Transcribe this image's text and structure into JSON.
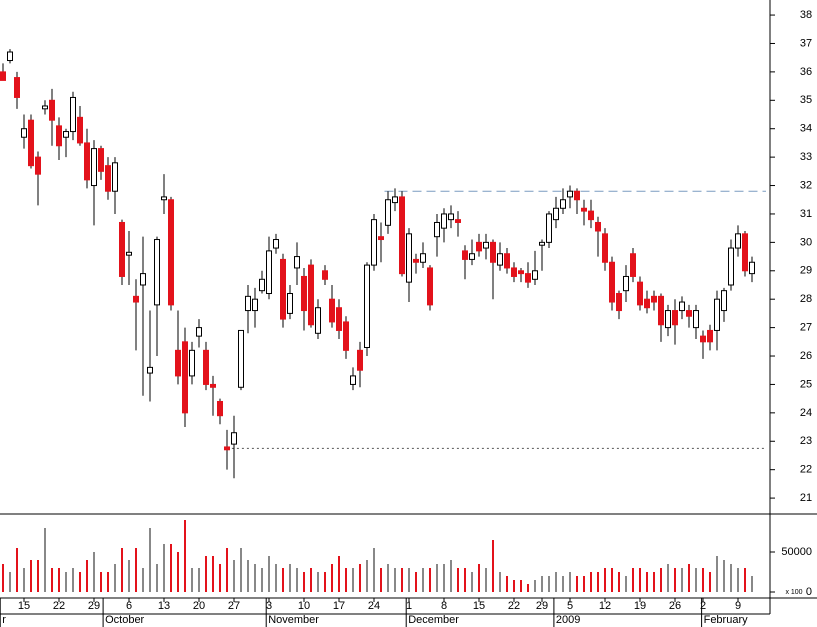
{
  "chart_data": {
    "type": "candlestick",
    "open": [
      36.0,
      36.4,
      35.8,
      33.7,
      34.3,
      33.0,
      34.7,
      35.0,
      34.1,
      33.7,
      33.9,
      34.4,
      33.5,
      32.0,
      33.3,
      32.7,
      31.8,
      30.7,
      29.55,
      28.1,
      28.5,
      25.4,
      27.8,
      31.5,
      31.5,
      26.2,
      26.5,
      25.3,
      26.7,
      26.2,
      25.0,
      24.4,
      22.8,
      22.9,
      24.9,
      27.6,
      27.6,
      28.3,
      28.2,
      29.8,
      29.4,
      27.5,
      29.1,
      28.8,
      29.2,
      26.8,
      29.0,
      28.0,
      27.7,
      27.2,
      25.0,
      26.2,
      26.3,
      29.2,
      30.2,
      30.6,
      31.4,
      31.6,
      28.6,
      29.4,
      29.3,
      29.1,
      30.2,
      30.5,
      30.8,
      30.8,
      29.7,
      29.4,
      30.0,
      29.8,
      30.0,
      29.2,
      29.6,
      29.1,
      29.0,
      28.9,
      28.7,
      29.9,
      30.0,
      30.8,
      31.2,
      31.6,
      31.8,
      31.2,
      31.1,
      30.7,
      30.3,
      29.3,
      28.2,
      28.3,
      29.6,
      28.6,
      28.0,
      28.1,
      28.1,
      27.0,
      27.6,
      27.6,
      27.6,
      27.0,
      26.7,
      26.9,
      26.9,
      27.6,
      28.5,
      29.8,
      30.3,
      28.9
    ],
    "high": [
      36.3,
      36.8,
      36.0,
      34.5,
      34.5,
      33.2,
      35.0,
      35.4,
      34.4,
      34.0,
      35.3,
      34.8,
      34.0,
      33.6,
      33.4,
      33.0,
      33.0,
      30.8,
      30.4,
      28.7,
      30.2,
      27.6,
      30.2,
      32.4,
      31.6,
      27.6,
      27.0,
      26.5,
      27.3,
      26.5,
      25.3,
      24.5,
      23.4,
      23.9,
      26.9,
      28.5,
      28.4,
      29.0,
      30.2,
      30.3,
      29.6,
      28.5,
      30.0,
      29.1,
      29.4,
      28.0,
      29.2,
      28.5,
      28.0,
      27.4,
      25.6,
      26.5,
      29.3,
      31.0,
      30.7,
      31.8,
      31.9,
      31.8,
      30.5,
      29.6,
      30.0,
      29.2,
      31.0,
      31.2,
      31.3,
      31.1,
      29.9,
      30.1,
      30.3,
      30.3,
      30.1,
      30.0,
      29.8,
      29.3,
      29.1,
      29.3,
      29.7,
      30.1,
      31.1,
      31.6,
      31.9,
      32.0,
      31.9,
      31.5,
      31.5,
      30.9,
      30.5,
      29.5,
      28.3,
      29.2,
      29.8,
      28.8,
      28.3,
      28.3,
      28.2,
      27.8,
      28.0,
      28.1,
      27.8,
      27.8,
      26.9,
      27.1,
      28.3,
      28.4,
      30.1,
      30.6,
      30.4,
      29.5
    ],
    "low": [
      35.7,
      36.3,
      34.7,
      33.3,
      32.6,
      31.3,
      34.5,
      33.4,
      32.9,
      33.0,
      33.6,
      33.4,
      31.9,
      30.6,
      32.2,
      31.5,
      31.0,
      28.5,
      28.5,
      26.2,
      24.6,
      24.4,
      26.0,
      31.0,
      27.6,
      25.0,
      23.5,
      25.0,
      26.3,
      24.8,
      23.9,
      23.6,
      22.0,
      21.7,
      24.8,
      26.8,
      27.0,
      28.2,
      28.0,
      29.6,
      27.0,
      27.3,
      28.5,
      26.9,
      27.0,
      26.6,
      28.5,
      27.0,
      26.6,
      25.9,
      24.8,
      24.9,
      26.0,
      29.0,
      29.3,
      30.3,
      31.1,
      28.8,
      27.9,
      28.9,
      29.1,
      27.6,
      29.5,
      30.0,
      30.5,
      30.2,
      28.7,
      29.2,
      29.5,
      29.4,
      28.0,
      29.0,
      28.9,
      28.6,
      28.6,
      28.4,
      28.5,
      29.0,
      29.8,
      30.5,
      31.0,
      31.2,
      31.0,
      30.6,
      30.5,
      29.5,
      29.0,
      27.6,
      27.3,
      27.9,
      28.6,
      27.6,
      27.5,
      27.6,
      26.5,
      26.7,
      26.4,
      27.3,
      27.0,
      26.6,
      25.9,
      26.2,
      26.2,
      27.2,
      28.3,
      29.5,
      28.8,
      28.6
    ],
    "close": [
      35.7,
      36.7,
      35.1,
      34.0,
      32.7,
      32.4,
      34.8,
      34.3,
      33.4,
      33.9,
      35.1,
      33.5,
      32.2,
      33.3,
      32.5,
      31.8,
      32.8,
      28.8,
      29.65,
      27.9,
      28.9,
      25.6,
      30.1,
      31.6,
      27.8,
      25.3,
      24.0,
      26.2,
      27.0,
      25.0,
      24.9,
      23.9,
      22.7,
      23.3,
      26.9,
      28.1,
      28.0,
      28.7,
      29.7,
      30.1,
      27.3,
      28.2,
      29.5,
      27.6,
      27.1,
      27.7,
      28.7,
      27.2,
      26.9,
      26.2,
      25.3,
      25.5,
      29.2,
      30.8,
      30.1,
      31.5,
      31.6,
      28.9,
      30.3,
      29.3,
      29.6,
      27.8,
      30.7,
      31.0,
      31.0,
      30.7,
      29.4,
      29.6,
      29.7,
      30.0,
      29.3,
      29.6,
      29.1,
      28.8,
      28.9,
      28.6,
      29.0,
      30.0,
      31.0,
      31.2,
      31.5,
      31.8,
      31.5,
      31.1,
      30.8,
      30.4,
      29.3,
      27.9,
      27.6,
      28.8,
      28.8,
      27.8,
      27.7,
      27.9,
      27.1,
      27.6,
      27.1,
      27.9,
      27.4,
      27.6,
      26.5,
      26.5,
      28.0,
      28.3,
      29.8,
      30.3,
      29.0,
      29.3
    ],
    "volume": [
      35000,
      25000,
      55000,
      30000,
      40000,
      40000,
      80000,
      30000,
      30000,
      25000,
      30000,
      25000,
      40000,
      50000,
      25000,
      25000,
      35000,
      55000,
      40000,
      55000,
      30000,
      80000,
      35000,
      60000,
      60000,
      50000,
      90000,
      30000,
      30000,
      45000,
      45000,
      35000,
      55000,
      40000,
      55000,
      40000,
      35000,
      30000,
      45000,
      35000,
      30000,
      35000,
      30000,
      25000,
      30000,
      25000,
      25000,
      35000,
      45000,
      30000,
      30000,
      35000,
      40000,
      55000,
      30000,
      35000,
      30000,
      30000,
      30000,
      25000,
      30000,
      30000,
      35000,
      35000,
      40000,
      30000,
      30000,
      25000,
      35000,
      30000,
      65000,
      25000,
      20000,
      15000,
      15000,
      10000,
      15000,
      20000,
      20000,
      25000,
      20000,
      25000,
      20000,
      20000,
      25000,
      25000,
      30000,
      30000,
      25000,
      20000,
      30000,
      30000,
      25000,
      25000,
      30000,
      35000,
      30000,
      30000,
      35000,
      30000,
      30000,
      25000,
      45000,
      40000,
      35000,
      30000,
      30000,
      20000
    ],
    "ylim": [
      20.44,
      38.53
    ],
    "yticks": [
      21,
      22,
      23,
      24,
      25,
      26,
      27,
      28,
      29,
      30,
      31,
      32,
      33,
      34,
      35,
      36,
      37,
      38
    ],
    "volume_ylim": [
      -7500,
      96250
    ],
    "volume_yticks": [
      0,
      50000
    ],
    "volume_unit_label": "x 100",
    "xticks": [
      {
        "value": 3,
        "label": "15"
      },
      {
        "value": 8,
        "label": "22"
      },
      {
        "value": 13,
        "label": "29"
      },
      {
        "value": 18,
        "label": "6"
      },
      {
        "value": 23,
        "label": "13"
      },
      {
        "value": 28,
        "label": "20"
      },
      {
        "value": 33,
        "label": "27"
      },
      {
        "value": 38,
        "label": "3"
      },
      {
        "value": 43,
        "label": "10"
      },
      {
        "value": 48,
        "label": "17"
      },
      {
        "value": 53,
        "label": "24"
      },
      {
        "value": 58,
        "label": "1"
      },
      {
        "value": 63,
        "label": "8"
      },
      {
        "value": 68,
        "label": "15"
      },
      {
        "value": 73,
        "label": "22"
      },
      {
        "value": 77,
        "label": "29"
      },
      {
        "value": 81,
        "label": "5"
      },
      {
        "value": 86,
        "label": "12"
      },
      {
        "value": 91,
        "label": "19"
      },
      {
        "value": 96,
        "label": "26"
      },
      {
        "value": 100,
        "label": "2"
      },
      {
        "value": 105,
        "label": "9"
      }
    ],
    "months": [
      {
        "value": -0.4,
        "label": "r"
      },
      {
        "value": 14.3,
        "label": "October"
      },
      {
        "value": 37.6,
        "label": "November"
      },
      {
        "value": 57.6,
        "label": "December"
      },
      {
        "value": 78.7,
        "label": "2009"
      },
      {
        "value": 99.8,
        "label": "February"
      }
    ],
    "hlines": [
      {
        "value": 31.8,
        "start": 54.5,
        "style": "dashed",
        "color": "#7a9cc0"
      },
      {
        "value": 22.75,
        "start": 32.7,
        "style": "dotted",
        "color": "#555555"
      }
    ],
    "colors": {
      "up": "#ffffff",
      "down": "#e3121b",
      "volume_up": "#888888",
      "volume_down": "#e3121b"
    }
  }
}
